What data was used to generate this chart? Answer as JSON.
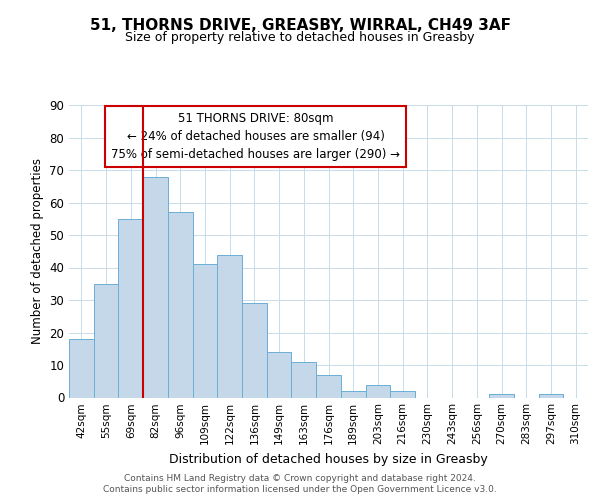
{
  "title": "51, THORNS DRIVE, GREASBY, WIRRAL, CH49 3AF",
  "subtitle": "Size of property relative to detached houses in Greasby",
  "xlabel": "Distribution of detached houses by size in Greasby",
  "ylabel": "Number of detached properties",
  "bin_labels": [
    "42sqm",
    "55sqm",
    "69sqm",
    "82sqm",
    "96sqm",
    "109sqm",
    "122sqm",
    "136sqm",
    "149sqm",
    "163sqm",
    "176sqm",
    "189sqm",
    "203sqm",
    "216sqm",
    "230sqm",
    "243sqm",
    "256sqm",
    "270sqm",
    "283sqm",
    "297sqm",
    "310sqm"
  ],
  "bar_heights": [
    18,
    35,
    55,
    68,
    57,
    41,
    44,
    29,
    14,
    11,
    7,
    2,
    4,
    2,
    0,
    0,
    0,
    1,
    0,
    1,
    0
  ],
  "bar_color": "#c5d8ea",
  "bar_edge_color": "#6aaed6",
  "ylim": [
    0,
    90
  ],
  "yticks": [
    0,
    10,
    20,
    30,
    40,
    50,
    60,
    70,
    80,
    90
  ],
  "property_line_color": "#cc0000",
  "annotation_title": "51 THORNS DRIVE: 80sqm",
  "annotation_line1": "← 24% of detached houses are smaller (94)",
  "annotation_line2": "75% of semi-detached houses are larger (290) →",
  "annotation_box_color": "#ffffff",
  "annotation_box_edge": "#cc0000",
  "footer1": "Contains HM Land Registry data © Crown copyright and database right 2024.",
  "footer2": "Contains public sector information licensed under the Open Government Licence v3.0.",
  "background_color": "#ffffff",
  "grid_color": "#c8dce8"
}
